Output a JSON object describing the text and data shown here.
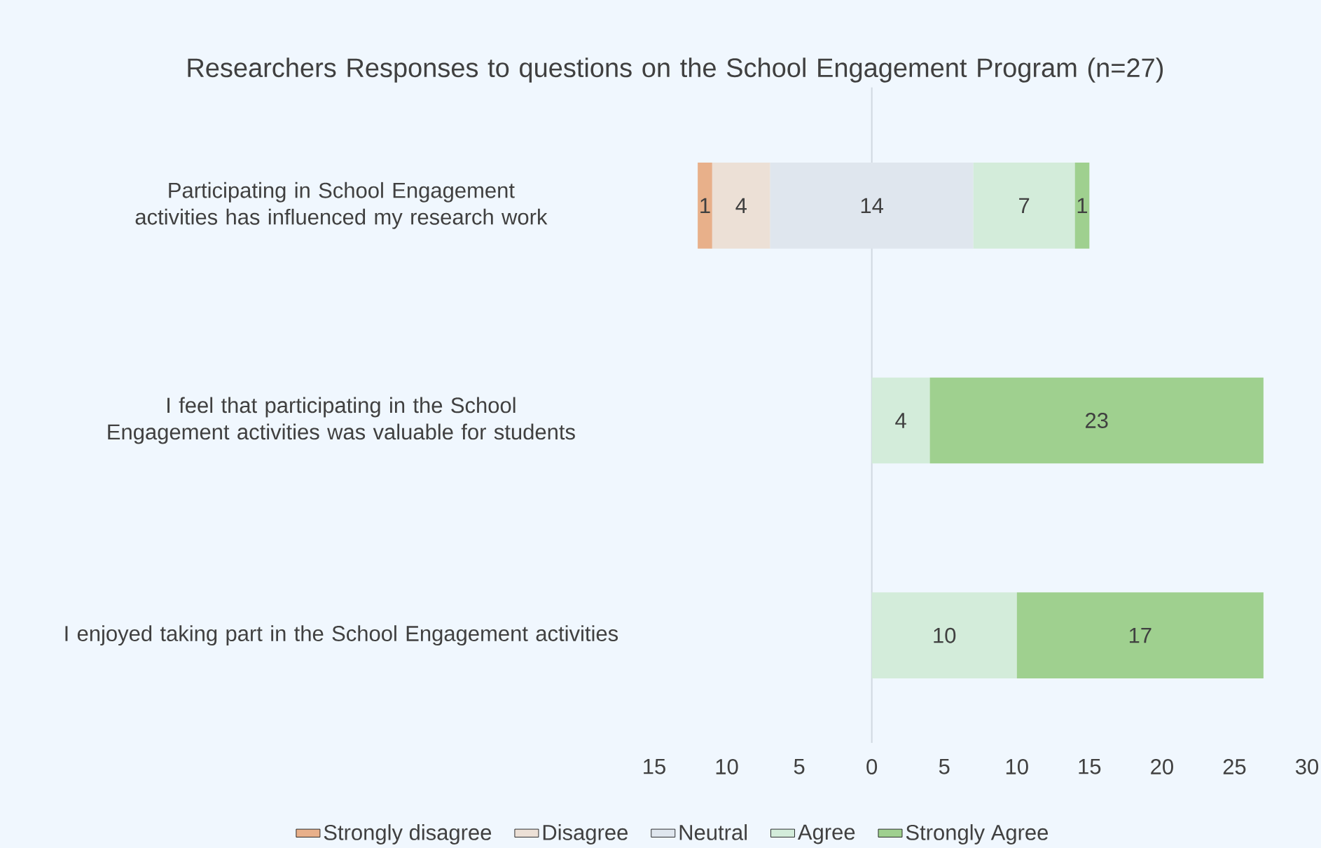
{
  "chart_data": {
    "type": "bar",
    "orientation": "horizontal",
    "title": "Researchers Responses to questions on the School Engagement Program (n=27)",
    "categories": [
      "Participating in School Engagement activities has influenced my research work",
      "I feel that participating in the School Engagement activities was valuable for students",
      "I enjoyed taking part in the School Engagement activities"
    ],
    "series": [
      {
        "name": "Strongly disagree",
        "color": "#e8b08a",
        "values": [
          1,
          null,
          null
        ],
        "base": [
          -12,
          null,
          null
        ]
      },
      {
        "name": "Disagree",
        "color": "#ece0d6",
        "values": [
          4,
          null,
          null
        ],
        "base": [
          -11,
          null,
          null
        ]
      },
      {
        "name": "Neutral",
        "color": "#dfe6ee",
        "values": [
          14,
          null,
          null
        ],
        "base": [
          -7,
          null,
          null
        ]
      },
      {
        "name": "Agree",
        "color": "#d3ecda",
        "values": [
          7,
          4,
          10
        ],
        "base": [
          7,
          0,
          0
        ]
      },
      {
        "name": "Strongly Agree",
        "color": "#9fd08f",
        "values": [
          1,
          23,
          17
        ],
        "base": [
          14,
          4,
          10
        ]
      }
    ],
    "xlim": [
      -15,
      30
    ],
    "xticks": [
      {
        "value": -15,
        "label": "15"
      },
      {
        "value": -10,
        "label": "10"
      },
      {
        "value": -5,
        "label": "5"
      },
      0,
      5,
      10,
      15,
      20,
      25,
      30
    ],
    "data_labels": true,
    "legend": "bottom"
  }
}
